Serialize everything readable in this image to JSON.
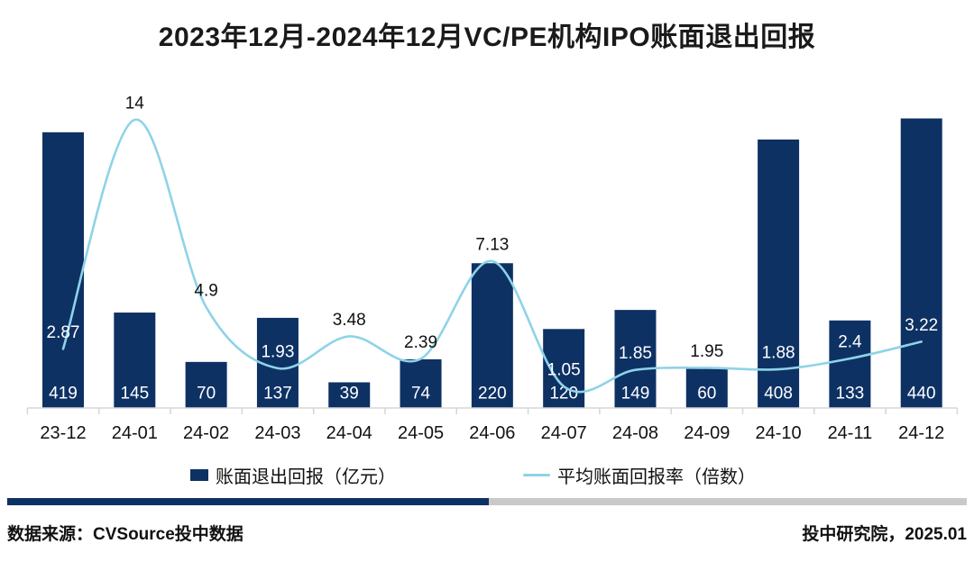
{
  "title": "2023年12月-2024年12月VC/PE机构IPO账面退出回报",
  "chart_data": {
    "type": "bar",
    "subtype": "bar-line-combo",
    "title": "2023年12月-2024年12月VC/PE机构IPO账面退出回报",
    "categories": [
      "23-12",
      "24-01",
      "24-02",
      "24-03",
      "24-04",
      "24-05",
      "24-06",
      "24-07",
      "24-08",
      "24-09",
      "24-10",
      "24-11",
      "24-12"
    ],
    "series": [
      {
        "name": "账面退出回报（亿元）",
        "type": "bar",
        "values": [
          419,
          145,
          70,
          137,
          39,
          74,
          220,
          120,
          149,
          60,
          408,
          133,
          440
        ]
      },
      {
        "name": "平均账面回报率（倍数）",
        "type": "line",
        "values": [
          2.87,
          14,
          4.9,
          1.93,
          3.48,
          2.39,
          7.13,
          1.05,
          1.85,
          1.95,
          1.88,
          2.4,
          3.22
        ]
      }
    ],
    "xlabel": "",
    "ylabel": "",
    "ylim_bar": [
      0,
      440
    ],
    "ylim_line": [
      0,
      14
    ],
    "grid": false,
    "legend_position": "bottom",
    "data_labels": true
  },
  "legend": {
    "bar_label": "账面退出回报（亿元）",
    "line_label": "平均账面回报率（倍数）"
  },
  "footer": {
    "source": "数据来源：CVSource投中数据",
    "publisher": "投中研究院，2025.01"
  },
  "colors": {
    "bar": "#0e3164",
    "line": "#8ed3e8",
    "axis": "#d6d6d6",
    "label_dark": "#111111",
    "label_light": "#ffffff",
    "divider_left": "#0e3164",
    "divider_right": "#c9c9c9",
    "title_text": "#1a1a1a"
  }
}
